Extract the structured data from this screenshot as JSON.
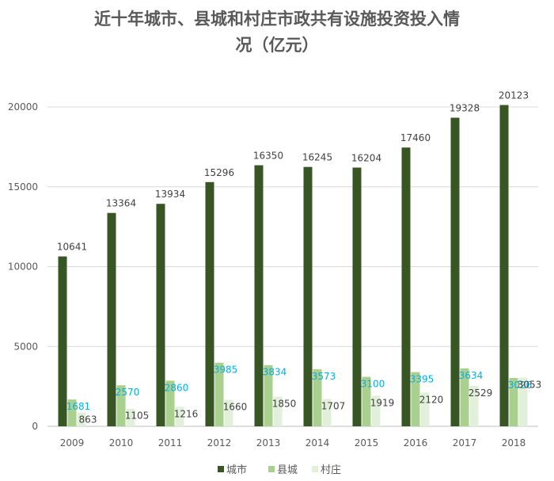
{
  "chart_data": {
    "type": "bar",
    "title": "近十年城市、县城和村庄市政共有设施投资投入情况（亿元）",
    "title_lines": [
      "近十年城市、县城和村庄市政共有设施投资投入情",
      "况（亿元）"
    ],
    "categories": [
      "2009",
      "2010",
      "2011",
      "2012",
      "2013",
      "2014",
      "2015",
      "2016",
      "2017",
      "2018"
    ],
    "series": [
      {
        "name": "城市",
        "color": "#375623",
        "label_color": "#404040",
        "values": [
          10641,
          13364,
          13934,
          15296,
          16350,
          16245,
          16204,
          17460,
          19328,
          20123
        ]
      },
      {
        "name": "县城",
        "color": "#a9d08e",
        "label_color": "#00b0f0",
        "values": [
          1681,
          2570,
          2860,
          3985,
          3834,
          3573,
          3100,
          3395,
          3634,
          3026
        ]
      },
      {
        "name": "村庄",
        "color": "#e2efda",
        "label_color": "#404040",
        "values": [
          863,
          1105,
          1216,
          1660,
          1850,
          1707,
          1919,
          2120,
          2529,
          3053
        ]
      }
    ],
    "yticks": [
      0,
      5000,
      10000,
      15000,
      20000
    ],
    "ylim": [
      0,
      22000
    ],
    "grid": true,
    "legend": "bottom"
  }
}
